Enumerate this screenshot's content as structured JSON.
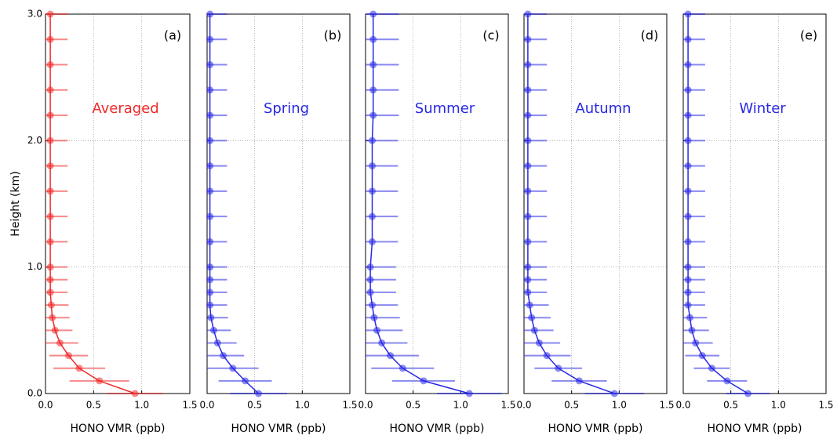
{
  "chart_data": [
    {
      "type": "errorbar-line",
      "panel_label": "(a)",
      "annotation": "Averaged",
      "color": "#f02828",
      "xlabel": "HONO VMR (ppb)",
      "ylabel": "Height (km)",
      "y": [
        0,
        0.1,
        0.2,
        0.3,
        0.4,
        0.5,
        0.6,
        0.7,
        0.8,
        0.9,
        1.0,
        1.2,
        1.4,
        1.6,
        1.8,
        2.0,
        2.2,
        2.4,
        2.6,
        2.8,
        3.0
      ],
      "values": [
        0.93,
        0.56,
        0.35,
        0.24,
        0.15,
        0.1,
        0.07,
        0.06,
        0.05,
        0.05,
        0.05,
        0.05,
        0.05,
        0.05,
        0.05,
        0.05,
        0.05,
        0.05,
        0.05,
        0.05,
        0.05
      ],
      "errors": [
        0.29,
        0.31,
        0.27,
        0.2,
        0.19,
        0.18,
        0.18,
        0.18,
        0.18,
        0.18,
        0.18,
        0.18,
        0.18,
        0.18,
        0.18,
        0.18,
        0.18,
        0.18,
        0.18,
        0.18,
        0.18
      ],
      "xlim": [
        0,
        1.5
      ],
      "xticks": [
        {
          "value": 0,
          "label": "0.0"
        },
        0.5,
        {
          "value": 1,
          "label": "1.0"
        },
        1.5
      ],
      "ylim": [
        0,
        3
      ],
      "yticks": [
        {
          "value": 0,
          "label": "0.0"
        },
        {
          "value": 1,
          "label": "1.0"
        },
        {
          "value": 2,
          "label": "2.0"
        },
        {
          "value": 3,
          "label": "3.0"
        }
      ],
      "ytick_labels": true,
      "grid": true
    },
    {
      "type": "errorbar-line",
      "panel_label": "(b)",
      "annotation": "Spring",
      "color": "#2828e6",
      "xlabel": "HONO VMR (ppb)",
      "y": [
        0,
        0.1,
        0.2,
        0.3,
        0.4,
        0.5,
        0.6,
        0.7,
        0.8,
        0.9,
        1.0,
        1.2,
        1.4,
        1.6,
        1.8,
        2.0,
        2.2,
        2.4,
        2.6,
        2.8,
        3.0
      ],
      "values": [
        0.54,
        0.4,
        0.27,
        0.17,
        0.11,
        0.07,
        0.04,
        0.03,
        0.03,
        0.03,
        0.03,
        0.03,
        0.03,
        0.03,
        0.03,
        0.03,
        0.03,
        0.03,
        0.03,
        0.03,
        0.03
      ],
      "errors": [
        0.3,
        0.28,
        0.27,
        0.22,
        0.2,
        0.18,
        0.18,
        0.18,
        0.18,
        0.18,
        0.18,
        0.18,
        0.18,
        0.18,
        0.18,
        0.18,
        0.18,
        0.18,
        0.18,
        0.18,
        0.18
      ],
      "xlim": [
        0,
        1.5
      ],
      "xticks": [
        {
          "value": 0,
          "label": "0.0"
        },
        0.5,
        {
          "value": 1,
          "label": "1.0"
        },
        1.5
      ],
      "ylim": [
        0,
        3
      ],
      "yticks": [
        0,
        1,
        2,
        3
      ],
      "ytick_labels": false,
      "grid": true
    },
    {
      "type": "errorbar-line",
      "panel_label": "(c)",
      "annotation": "Summer",
      "color": "#2828e6",
      "xlabel": "HONO VMR (ppb)",
      "y": [
        0,
        0.1,
        0.2,
        0.3,
        0.4,
        0.5,
        0.6,
        0.7,
        0.8,
        0.9,
        1.0,
        1.2,
        1.4,
        1.6,
        1.8,
        2.0,
        2.2,
        2.4,
        2.6,
        2.8,
        3.0
      ],
      "values": [
        1.09,
        0.61,
        0.39,
        0.26,
        0.17,
        0.12,
        0.09,
        0.07,
        0.05,
        0.05,
        0.05,
        0.07,
        0.07,
        0.07,
        0.07,
        0.07,
        0.08,
        0.08,
        0.08,
        0.08,
        0.08
      ],
      "errors": [
        0.34,
        0.33,
        0.33,
        0.3,
        0.27,
        0.27,
        0.27,
        0.27,
        0.27,
        0.27,
        0.27,
        0.27,
        0.27,
        0.27,
        0.27,
        0.27,
        0.27,
        0.27,
        0.27,
        0.27,
        0.27
      ],
      "xlim": [
        0,
        1.5
      ],
      "xticks": [
        {
          "value": 0,
          "label": "0.0"
        },
        0.5,
        {
          "value": 1,
          "label": "1.0"
        },
        1.5
      ],
      "ylim": [
        0,
        3
      ],
      "yticks": [
        0,
        1,
        2,
        3
      ],
      "ytick_labels": false,
      "grid": true
    },
    {
      "type": "errorbar-line",
      "panel_label": "(d)",
      "annotation": "Autumn",
      "color": "#2828e6",
      "xlabel": "HONO VMR (ppb)",
      "y": [
        0,
        0.1,
        0.2,
        0.3,
        0.4,
        0.5,
        0.6,
        0.7,
        0.8,
        0.9,
        1.0,
        1.2,
        1.4,
        1.6,
        1.8,
        2.0,
        2.2,
        2.4,
        2.6,
        2.8,
        3.0
      ],
      "values": [
        0.95,
        0.58,
        0.36,
        0.24,
        0.16,
        0.11,
        0.08,
        0.06,
        0.04,
        0.04,
        0.04,
        0.04,
        0.04,
        0.04,
        0.04,
        0.04,
        0.04,
        0.04,
        0.04,
        0.04,
        0.04
      ],
      "errors": [
        0.31,
        0.29,
        0.25,
        0.25,
        0.22,
        0.2,
        0.2,
        0.2,
        0.2,
        0.2,
        0.2,
        0.2,
        0.2,
        0.2,
        0.2,
        0.2,
        0.2,
        0.2,
        0.2,
        0.2,
        0.2
      ],
      "xlim": [
        0,
        1.5
      ],
      "xticks": [
        {
          "value": 0,
          "label": "0.0"
        },
        0.5,
        {
          "value": 1,
          "label": "1.0"
        },
        1.5
      ],
      "ylim": [
        0,
        3
      ],
      "yticks": [
        0,
        1,
        2,
        3
      ],
      "ytick_labels": false,
      "grid": true
    },
    {
      "type": "errorbar-line",
      "panel_label": "(e)",
      "annotation": "Winter",
      "color": "#2828e6",
      "xlabel": "HONO VMR (ppb)",
      "y": [
        0,
        0.1,
        0.2,
        0.3,
        0.4,
        0.5,
        0.6,
        0.7,
        0.8,
        0.9,
        1.0,
        1.2,
        1.4,
        1.6,
        1.8,
        2.0,
        2.2,
        2.4,
        2.6,
        2.8,
        3.0
      ],
      "values": [
        0.68,
        0.46,
        0.3,
        0.2,
        0.13,
        0.09,
        0.07,
        0.05,
        0.05,
        0.05,
        0.05,
        0.05,
        0.05,
        0.05,
        0.05,
        0.05,
        0.05,
        0.05,
        0.05,
        0.05,
        0.05
      ],
      "errors": [
        0.23,
        0.21,
        0.19,
        0.18,
        0.18,
        0.18,
        0.18,
        0.18,
        0.18,
        0.18,
        0.18,
        0.18,
        0.18,
        0.18,
        0.18,
        0.18,
        0.18,
        0.18,
        0.18,
        0.18,
        0.18
      ],
      "xlim": [
        0,
        1.5
      ],
      "xticks": [
        {
          "value": 0,
          "label": "0.0"
        },
        0.5,
        {
          "value": 1,
          "label": "1.0"
        },
        1.5
      ],
      "ylim": [
        0,
        3
      ],
      "yticks": [
        0,
        1,
        2,
        3
      ],
      "ytick_labels": false,
      "grid": true
    }
  ]
}
